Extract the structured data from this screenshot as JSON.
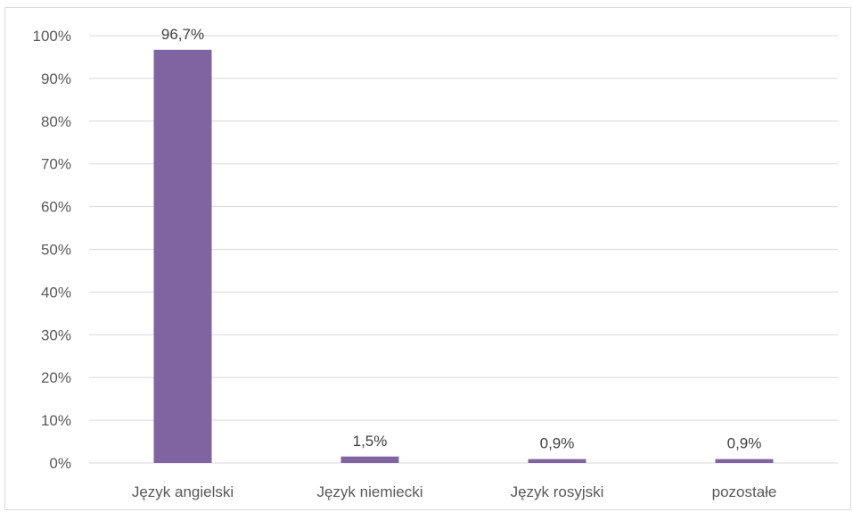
{
  "chart_data": {
    "type": "bar",
    "title": "",
    "xlabel": "",
    "ylabel": "",
    "categories": [
      "Język angielski",
      "Język niemiecki",
      "Język rosyjski",
      "pozostałe"
    ],
    "values": [
      96.7,
      1.5,
      0.9,
      0.9
    ],
    "data_labels": [
      "96,7%",
      "1,5%",
      "0,9%",
      "0,9%"
    ],
    "ylim": [
      0,
      100
    ],
    "yticks": [
      0,
      10,
      20,
      30,
      40,
      50,
      60,
      70,
      80,
      90,
      100
    ],
    "ytick_labels": [
      "0%",
      "10%",
      "20%",
      "30%",
      "40%",
      "50%",
      "60%",
      "70%",
      "80%",
      "90%",
      "100%"
    ],
    "grid": true,
    "legend": "none",
    "bar_color": "#8064a2",
    "grid_color": "#d9d9d9"
  }
}
